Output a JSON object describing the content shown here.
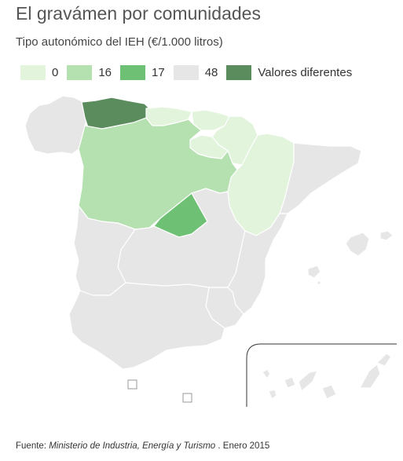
{
  "title": "El gravámen por comunidades",
  "subtitle": "Tipo autonómico del IEH (€/1.000 litros)",
  "legend": [
    {
      "label": "0",
      "color": "#e2f4dc"
    },
    {
      "label": "16",
      "color": "#b5e0b0"
    },
    {
      "label": "17",
      "color": "#6dc074"
    },
    {
      "label": "48",
      "color": "#e6e6e6"
    },
    {
      "label": "Valores diferentes",
      "color": "#5a8c5e"
    }
  ],
  "regions": [
    {
      "name": "Galicia",
      "category": "48"
    },
    {
      "name": "Asturias",
      "category": "Valores diferentes"
    },
    {
      "name": "Cantabria",
      "category": "0"
    },
    {
      "name": "País Vasco",
      "category": "0"
    },
    {
      "name": "Navarra",
      "category": "0"
    },
    {
      "name": "La Rioja",
      "category": "0"
    },
    {
      "name": "Aragón",
      "category": "0"
    },
    {
      "name": "Cataluña",
      "category": "48"
    },
    {
      "name": "Castilla y León",
      "category": "16"
    },
    {
      "name": "Madrid",
      "category": "17"
    },
    {
      "name": "Castilla-La Mancha",
      "category": "48"
    },
    {
      "name": "Extremadura",
      "category": "48"
    },
    {
      "name": "Comunidad Valenciana",
      "category": "48"
    },
    {
      "name": "Murcia",
      "category": "48"
    },
    {
      "name": "Andalucía",
      "category": "48"
    },
    {
      "name": "Islas Baleares",
      "category": "48"
    },
    {
      "name": "Canarias",
      "category": "48"
    },
    {
      "name": "Ceuta",
      "category": "48"
    },
    {
      "name": "Melilla",
      "category": "48"
    }
  ],
  "source": {
    "prefix": "Fuente: ",
    "entity": "Ministerio de Industria, Energía y Turismo",
    "suffix": " . Enero 2015"
  }
}
